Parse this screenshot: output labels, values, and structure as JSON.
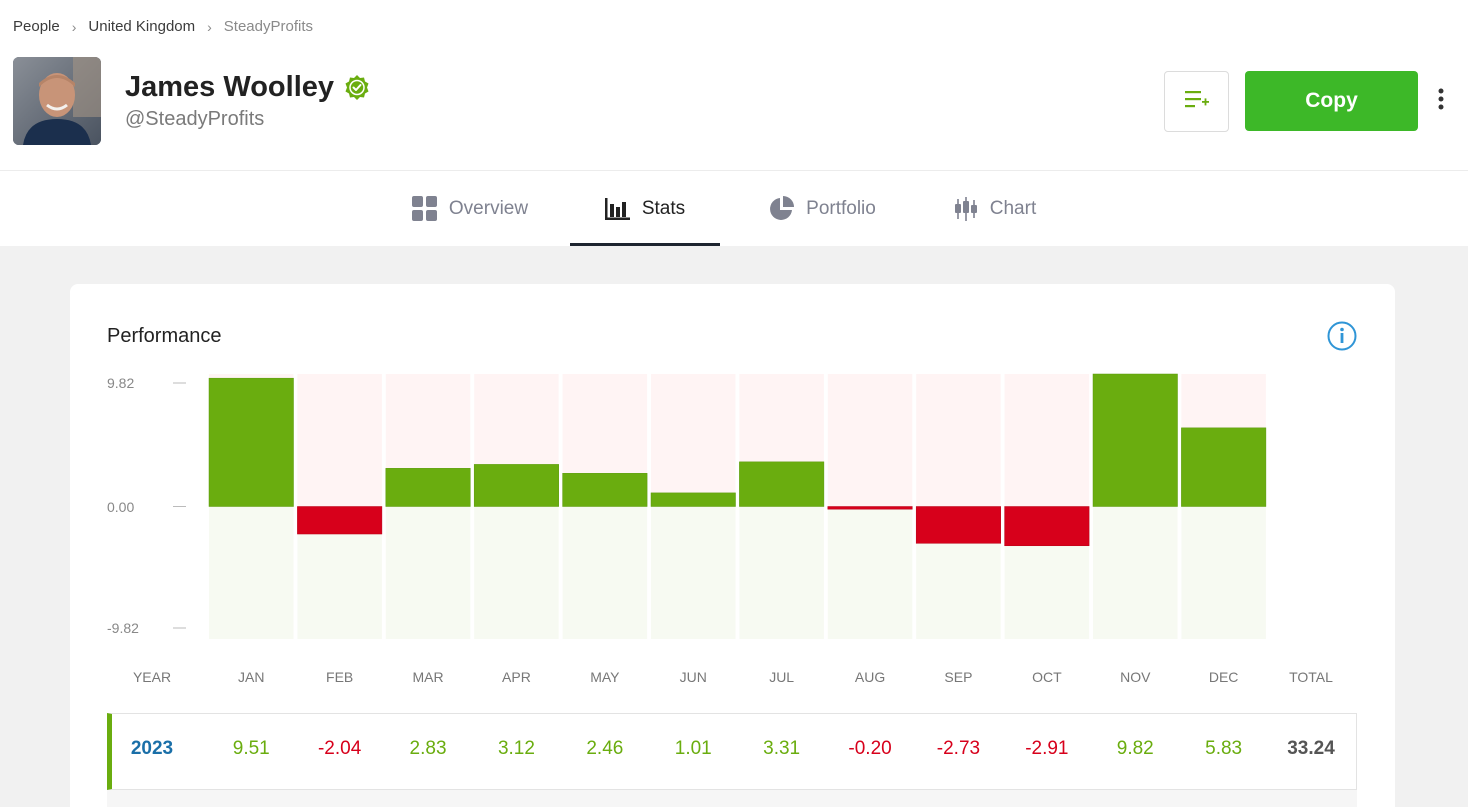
{
  "breadcrumb": [
    "People",
    "United Kingdom",
    "SteadyProfits"
  ],
  "profile": {
    "name": "James Woolley",
    "handle": "@SteadyProfits",
    "verified": true
  },
  "actions": {
    "watchlist_icon": "add-to-list-icon",
    "copy_label": "Copy",
    "more_icon": "more-vertical-icon"
  },
  "tabs": [
    {
      "label": "Overview",
      "icon": "grid-icon",
      "active": false
    },
    {
      "label": "Stats",
      "icon": "bar-chart-icon",
      "active": true
    },
    {
      "label": "Portfolio",
      "icon": "pie-chart-icon",
      "active": false
    },
    {
      "label": "Chart",
      "icon": "candlestick-icon",
      "active": false
    }
  ],
  "performance": {
    "title": "Performance",
    "columns": [
      "YEAR",
      "JAN",
      "FEB",
      "MAR",
      "APR",
      "MAY",
      "JUN",
      "JUL",
      "AUG",
      "SEP",
      "OCT",
      "NOV",
      "DEC",
      "TOTAL"
    ],
    "rows": [
      {
        "year": "2023",
        "values": [
          "9.51",
          "-2.04",
          "2.83",
          "3.12",
          "2.46",
          "1.01",
          "3.31",
          "-0.20",
          "-2.73",
          "-2.91",
          "9.82",
          "5.83"
        ],
        "total": "33.24"
      }
    ]
  },
  "colors": {
    "positive": "#6aad0f",
    "negative": "#d7001b",
    "copy_button": "#3db828",
    "positive_bg": "#f7faf2",
    "negative_bg": "#fff4f4"
  },
  "chart_data": {
    "type": "bar",
    "categories": [
      "JAN",
      "FEB",
      "MAR",
      "APR",
      "MAY",
      "JUN",
      "JUL",
      "AUG",
      "SEP",
      "OCT",
      "NOV",
      "DEC"
    ],
    "values": [
      9.51,
      -2.04,
      2.83,
      3.12,
      2.46,
      1.01,
      3.31,
      -0.2,
      -2.73,
      -2.91,
      9.82,
      5.83
    ],
    "ylim": [
      -9.82,
      9.82
    ],
    "yticks": [
      "9.82",
      "0.00",
      "-9.82"
    ],
    "title": "Performance",
    "grid": false
  }
}
